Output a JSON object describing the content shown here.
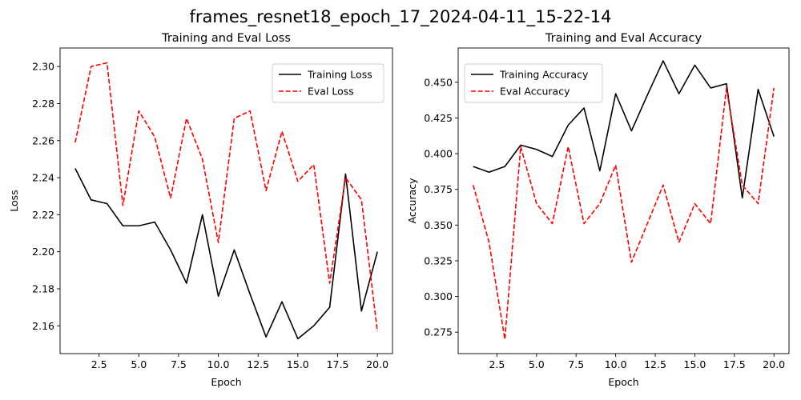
{
  "suptitle": "frames_resnet18_epoch_17_2024-04-11_15-22-14",
  "chart_data": [
    {
      "type": "line",
      "title": "Training and Eval Loss",
      "xlabel": "Epoch",
      "ylabel": "Loss",
      "xlim": [
        0.05,
        20.95
      ],
      "ylim": [
        2.145,
        2.31
      ],
      "xticks": [
        2.5,
        5.0,
        7.5,
        10.0,
        12.5,
        15.0,
        17.5,
        20.0
      ],
      "xtick_labels": [
        "2.5",
        "5.0",
        "7.5",
        "10.0",
        "12.5",
        "15.0",
        "17.5",
        "20.0"
      ],
      "yticks": [
        2.16,
        2.18,
        2.2,
        2.22,
        2.24,
        2.26,
        2.28,
        2.3
      ],
      "ytick_labels": [
        "2.16",
        "2.18",
        "2.20",
        "2.22",
        "2.24",
        "2.26",
        "2.28",
        "2.30"
      ],
      "grid": false,
      "legend_position": "top-right",
      "x": [
        1,
        2,
        3,
        4,
        5,
        6,
        7,
        8,
        9,
        10,
        11,
        12,
        13,
        14,
        15,
        16,
        17,
        18,
        19,
        20
      ],
      "series": [
        {
          "name": "Training Loss",
          "color": "#000000",
          "style": "solid",
          "values": [
            2.245,
            2.228,
            2.226,
            2.214,
            2.214,
            2.216,
            2.201,
            2.183,
            2.22,
            2.176,
            2.201,
            2.177,
            2.154,
            2.173,
            2.153,
            2.16,
            2.17,
            2.242,
            2.168,
            2.2
          ]
        },
        {
          "name": "Eval Loss",
          "color": "#ff0000",
          "style": "dashed",
          "values": [
            2.259,
            2.3,
            2.302,
            2.225,
            2.276,
            2.262,
            2.229,
            2.272,
            2.25,
            2.205,
            2.272,
            2.276,
            2.233,
            2.265,
            2.238,
            2.247,
            2.183,
            2.24,
            2.228,
            2.157
          ]
        }
      ]
    },
    {
      "type": "line",
      "title": "Training and Eval Accuracy",
      "xlabel": "Epoch",
      "ylabel": "Accuracy",
      "xlim": [
        0.05,
        20.95
      ],
      "ylim": [
        0.26,
        0.474
      ],
      "xticks": [
        2.5,
        5.0,
        7.5,
        10.0,
        12.5,
        15.0,
        17.5,
        20.0
      ],
      "xtick_labels": [
        "2.5",
        "5.0",
        "7.5",
        "10.0",
        "12.5",
        "15.0",
        "17.5",
        "20.0"
      ],
      "yticks": [
        0.275,
        0.3,
        0.325,
        0.35,
        0.375,
        0.4,
        0.425,
        0.45
      ],
      "ytick_labels": [
        "0.275",
        "0.300",
        "0.325",
        "0.350",
        "0.375",
        "0.400",
        "0.425",
        "0.450"
      ],
      "grid": false,
      "legend_position": "top-left",
      "x": [
        1,
        2,
        3,
        4,
        5,
        6,
        7,
        8,
        9,
        10,
        11,
        12,
        13,
        14,
        15,
        16,
        17,
        18,
        19,
        20
      ],
      "series": [
        {
          "name": "Training Accuracy",
          "color": "#000000",
          "style": "solid",
          "values": [
            0.391,
            0.387,
            0.391,
            0.406,
            0.403,
            0.398,
            0.42,
            0.432,
            0.388,
            0.442,
            0.416,
            0.441,
            0.465,
            0.442,
            0.462,
            0.446,
            0.449,
            0.369,
            0.445,
            0.412
          ]
        },
        {
          "name": "Eval Accuracy",
          "color": "#ff0000",
          "style": "dashed",
          "values": [
            0.378,
            0.338,
            0.27,
            0.405,
            0.365,
            0.351,
            0.405,
            0.351,
            0.365,
            0.392,
            0.324,
            0.351,
            0.378,
            0.338,
            0.365,
            0.351,
            0.446,
            0.378,
            0.365,
            0.446
          ]
        }
      ]
    }
  ]
}
